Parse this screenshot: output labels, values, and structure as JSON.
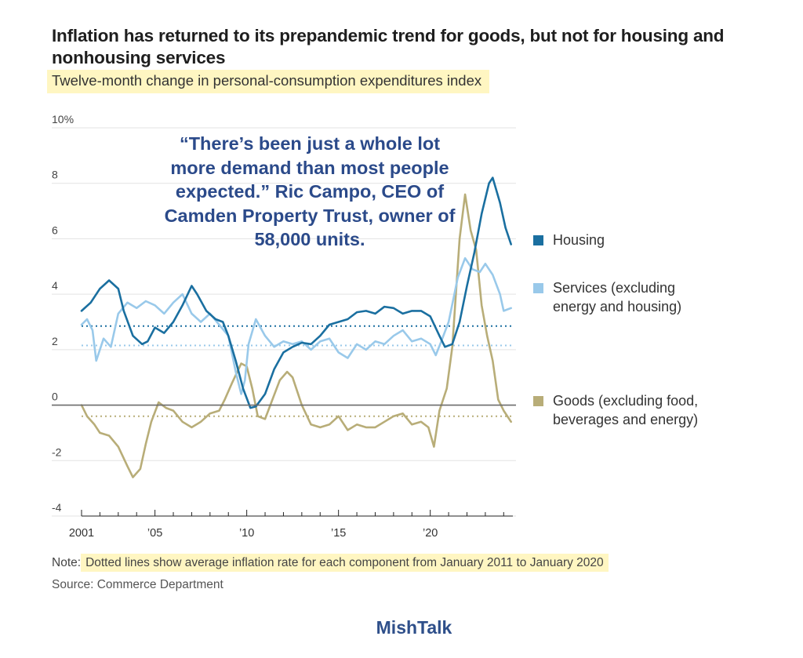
{
  "header": {
    "title": "Inflation has returned to its prepandemic trend for goods, but not for housing and nonhousing services",
    "subtitle": "Twelve-month change in personal-consumption expenditures index"
  },
  "annotation": {
    "quote": "“There’s been just a whole lot more demand than most people expected.” Ric Campo, CEO of Camden Property Trust, owner of 58,000 units."
  },
  "footer": {
    "note_label": "Note:",
    "note_text": "Dotted lines show average inflation rate for each component from January 2011 to January 2020",
    "source": "Source: Commerce Department",
    "brand": "MishTalk"
  },
  "chart_data": {
    "type": "line",
    "title": "Inflation has returned to its prepandemic trend for goods, but not for housing and nonhousing services",
    "subtitle": "Twelve-month change in personal-consumption expenditures index",
    "ylim": [
      -4,
      10
    ],
    "y_ticks": [
      -4,
      -2,
      0,
      2,
      4,
      6,
      8,
      10
    ],
    "y_tick_labels": [
      "-4",
      "-2",
      "0",
      "2",
      "4",
      "6",
      "8",
      "10%"
    ],
    "xlim": [
      2001,
      2024.5
    ],
    "x_ticks": [
      2001,
      2005,
      2010,
      2015,
      2020
    ],
    "x_tick_labels": [
      "2001",
      "’05",
      "’10",
      "’15",
      "’20"
    ],
    "grid": true,
    "legend_position": "right",
    "series": [
      {
        "name": "Housing",
        "color": "#1a6fa0",
        "average_2011_2020": 2.85,
        "points": [
          [
            2001,
            3.4
          ],
          [
            2001.5,
            3.7
          ],
          [
            2002,
            4.2
          ],
          [
            2002.5,
            4.5
          ],
          [
            2003,
            4.2
          ],
          [
            2003.3,
            3.4
          ],
          [
            2003.8,
            2.5
          ],
          [
            2004.3,
            2.2
          ],
          [
            2004.6,
            2.3
          ],
          [
            2005,
            2.8
          ],
          [
            2005.5,
            2.6
          ],
          [
            2006,
            3.0
          ],
          [
            2006.5,
            3.6
          ],
          [
            2007,
            4.3
          ],
          [
            2007.3,
            4.0
          ],
          [
            2007.8,
            3.4
          ],
          [
            2008.3,
            3.1
          ],
          [
            2008.7,
            3.0
          ],
          [
            2009,
            2.5
          ],
          [
            2009.4,
            1.6
          ],
          [
            2009.8,
            0.6
          ],
          [
            2010.2,
            -0.1
          ],
          [
            2010.5,
            -0.05
          ],
          [
            2011,
            0.4
          ],
          [
            2011.5,
            1.3
          ],
          [
            2012,
            1.9
          ],
          [
            2012.5,
            2.1
          ],
          [
            2013,
            2.25
          ],
          [
            2013.5,
            2.2
          ],
          [
            2014,
            2.5
          ],
          [
            2014.5,
            2.9
          ],
          [
            2015,
            3.0
          ],
          [
            2015.5,
            3.1
          ],
          [
            2016,
            3.35
          ],
          [
            2016.5,
            3.4
          ],
          [
            2017,
            3.3
          ],
          [
            2017.5,
            3.55
          ],
          [
            2018,
            3.5
          ],
          [
            2018.5,
            3.3
          ],
          [
            2019,
            3.4
          ],
          [
            2019.5,
            3.4
          ],
          [
            2020,
            3.2
          ],
          [
            2020.5,
            2.5
          ],
          [
            2020.8,
            2.1
          ],
          [
            2021.2,
            2.2
          ],
          [
            2021.6,
            3.0
          ],
          [
            2022,
            4.3
          ],
          [
            2022.4,
            5.5
          ],
          [
            2022.8,
            6.9
          ],
          [
            2023.2,
            8.0
          ],
          [
            2023.4,
            8.2
          ],
          [
            2023.8,
            7.3
          ],
          [
            2024.1,
            6.4
          ],
          [
            2024.4,
            5.8
          ]
        ]
      },
      {
        "name": "Services (excluding energy and housing)",
        "color": "#99c9ea",
        "average_2011_2020": 2.15,
        "points": [
          [
            2001,
            2.9
          ],
          [
            2001.3,
            3.1
          ],
          [
            2001.6,
            2.7
          ],
          [
            2001.8,
            1.6
          ],
          [
            2002.2,
            2.4
          ],
          [
            2002.6,
            2.1
          ],
          [
            2003,
            3.3
          ],
          [
            2003.5,
            3.7
          ],
          [
            2004,
            3.5
          ],
          [
            2004.5,
            3.75
          ],
          [
            2005,
            3.6
          ],
          [
            2005.5,
            3.3
          ],
          [
            2006,
            3.7
          ],
          [
            2006.5,
            4.0
          ],
          [
            2007,
            3.3
          ],
          [
            2007.5,
            3.0
          ],
          [
            2008,
            3.3
          ],
          [
            2008.5,
            2.9
          ],
          [
            2009,
            2.5
          ],
          [
            2009.4,
            1.2
          ],
          [
            2009.7,
            0.4
          ],
          [
            2009.9,
            0.9
          ],
          [
            2010.1,
            2.2
          ],
          [
            2010.5,
            3.1
          ],
          [
            2011,
            2.5
          ],
          [
            2011.5,
            2.1
          ],
          [
            2012,
            2.3
          ],
          [
            2012.5,
            2.2
          ],
          [
            2013,
            2.3
          ],
          [
            2013.5,
            2.0
          ],
          [
            2014,
            2.3
          ],
          [
            2014.5,
            2.4
          ],
          [
            2015,
            1.9
          ],
          [
            2015.5,
            1.7
          ],
          [
            2016,
            2.2
          ],
          [
            2016.5,
            2.0
          ],
          [
            2017,
            2.3
          ],
          [
            2017.5,
            2.2
          ],
          [
            2018,
            2.5
          ],
          [
            2018.5,
            2.7
          ],
          [
            2019,
            2.3
          ],
          [
            2019.5,
            2.4
          ],
          [
            2020,
            2.2
          ],
          [
            2020.3,
            1.8
          ],
          [
            2020.6,
            2.3
          ],
          [
            2021,
            3.0
          ],
          [
            2021.5,
            4.6
          ],
          [
            2021.9,
            5.3
          ],
          [
            2022.3,
            4.9
          ],
          [
            2022.7,
            4.8
          ],
          [
            2023,
            5.1
          ],
          [
            2023.4,
            4.7
          ],
          [
            2023.8,
            4.0
          ],
          [
            2024,
            3.4
          ],
          [
            2024.4,
            3.5
          ]
        ]
      },
      {
        "name": "Goods (excluding food, beverages and energy)",
        "color": "#b8ad78",
        "average_2011_2020": -0.4,
        "points": [
          [
            2001,
            0.0
          ],
          [
            2001.3,
            -0.4
          ],
          [
            2001.7,
            -0.7
          ],
          [
            2002,
            -1.0
          ],
          [
            2002.5,
            -1.1
          ],
          [
            2003,
            -1.5
          ],
          [
            2003.5,
            -2.2
          ],
          [
            2003.8,
            -2.6
          ],
          [
            2004.2,
            -2.3
          ],
          [
            2004.5,
            -1.4
          ],
          [
            2004.8,
            -0.6
          ],
          [
            2005.2,
            0.1
          ],
          [
            2005.6,
            -0.1
          ],
          [
            2006,
            -0.2
          ],
          [
            2006.5,
            -0.6
          ],
          [
            2007,
            -0.8
          ],
          [
            2007.5,
            -0.6
          ],
          [
            2008,
            -0.3
          ],
          [
            2008.5,
            -0.2
          ],
          [
            2008.8,
            0.2
          ],
          [
            2009.2,
            0.8
          ],
          [
            2009.7,
            1.5
          ],
          [
            2010,
            1.4
          ],
          [
            2010.3,
            0.6
          ],
          [
            2010.6,
            -0.4
          ],
          [
            2011,
            -0.5
          ],
          [
            2011.4,
            0.2
          ],
          [
            2011.8,
            0.9
          ],
          [
            2012.2,
            1.2
          ],
          [
            2012.5,
            1.0
          ],
          [
            2013,
            0.0
          ],
          [
            2013.5,
            -0.7
          ],
          [
            2014,
            -0.8
          ],
          [
            2014.5,
            -0.7
          ],
          [
            2015,
            -0.4
          ],
          [
            2015.5,
            -0.9
          ],
          [
            2016,
            -0.7
          ],
          [
            2016.5,
            -0.8
          ],
          [
            2017,
            -0.8
          ],
          [
            2017.5,
            -0.6
          ],
          [
            2018,
            -0.4
          ],
          [
            2018.5,
            -0.3
          ],
          [
            2019,
            -0.7
          ],
          [
            2019.5,
            -0.6
          ],
          [
            2019.9,
            -0.8
          ],
          [
            2020.2,
            -1.5
          ],
          [
            2020.5,
            -0.2
          ],
          [
            2020.9,
            0.6
          ],
          [
            2021.2,
            2.1
          ],
          [
            2021.6,
            6.0
          ],
          [
            2021.9,
            7.6
          ],
          [
            2022.2,
            6.3
          ],
          [
            2022.5,
            5.6
          ],
          [
            2022.8,
            3.6
          ],
          [
            2023.1,
            2.5
          ],
          [
            2023.4,
            1.6
          ],
          [
            2023.7,
            0.2
          ],
          [
            2024,
            -0.2
          ],
          [
            2024.4,
            -0.6
          ]
        ]
      }
    ]
  }
}
